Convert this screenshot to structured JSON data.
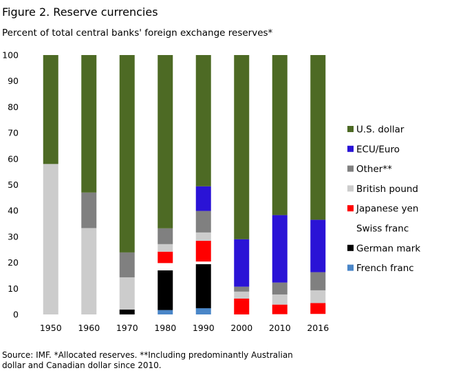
{
  "title": "Figure 2.  Reserve currencies",
  "subtitle": "Percent of total central banks' foreign exchange reserves*",
  "source": "Source: IMF. *Allocated reserves. **Including predominantly Australian dollar and Canadian dollar since 2010.",
  "chart_data": {
    "type": "bar",
    "stacked": true,
    "categories": [
      "1950",
      "1960",
      "1970",
      "1980",
      "1990",
      "2000",
      "2010",
      "2016"
    ],
    "ylim": [
      0,
      100
    ],
    "yticks": [
      0,
      10,
      20,
      30,
      40,
      50,
      60,
      70,
      80,
      90,
      100
    ],
    "legend_position": "right",
    "grid": false,
    "series": [
      {
        "name": "French franc",
        "color": "#4a86c8",
        "values": [
          0,
          0,
          0,
          1.7,
          2.4,
          0,
          0,
          0
        ]
      },
      {
        "name": "German mark",
        "color": "#000000",
        "values": [
          0,
          0,
          1.9,
          15.3,
          17.0,
          0,
          0,
          0
        ]
      },
      {
        "name": "Swiss franc",
        "color": "#ffffff",
        "values": [
          0,
          0,
          0,
          2.8,
          1.0,
          0,
          0.1,
          0.2
        ]
      },
      {
        "name": "Japanese yen",
        "color": "#ff0000",
        "values": [
          0,
          0,
          0,
          4.4,
          8.0,
          6.1,
          3.7,
          4.2
        ]
      },
      {
        "name": "British pound",
        "color": "#cccccc",
        "values": [
          58,
          33.3,
          12.4,
          2.9,
          3.2,
          2.7,
          3.9,
          4.9
        ]
      },
      {
        "name": "Other**",
        "color": "#808080",
        "values": [
          0,
          13.7,
          9.6,
          6.1,
          8.3,
          1.9,
          4.6,
          7.0
        ]
      },
      {
        "name": "ECU/Euro",
        "color": "#2a13d6",
        "values": [
          0,
          0,
          0,
          0,
          9.5,
          18.3,
          26.0,
          20.2
        ]
      },
      {
        "name": "U.S. dollar",
        "color": "#4d6a24",
        "values": [
          42,
          53.0,
          76.1,
          66.8,
          50.6,
          71.0,
          61.7,
          63.5
        ]
      }
    ],
    "legend_order": [
      "U.S. dollar",
      "ECU/Euro",
      "Other**",
      "British pound",
      "Japanese yen",
      "Swiss franc",
      "German mark",
      "French franc"
    ]
  }
}
